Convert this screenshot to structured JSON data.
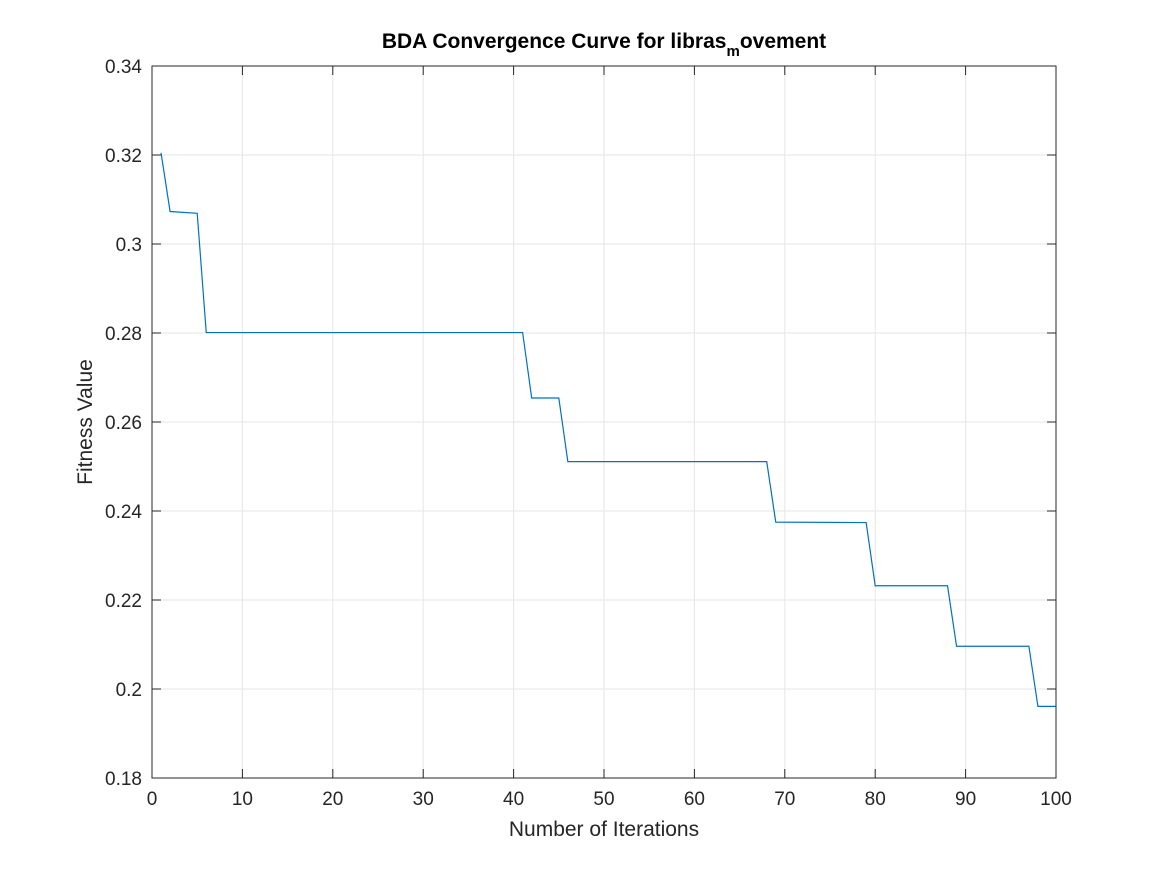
{
  "chart_data": {
    "type": "line",
    "title": {
      "prefix": "BDA Convergence Curve for libras",
      "subscript": "m",
      "suffix": "ovement"
    },
    "xlabel": "Number of Iterations",
    "ylabel": "Fitness Value",
    "xlim": [
      0,
      100
    ],
    "ylim": [
      0.18,
      0.34
    ],
    "xticks": [
      0,
      10,
      20,
      30,
      40,
      50,
      60,
      70,
      80,
      90,
      100
    ],
    "xtick_labels": [
      "0",
      "10",
      "20",
      "30",
      "40",
      "50",
      "60",
      "70",
      "80",
      "90",
      "100"
    ],
    "yticks": [
      0.18,
      0.2,
      0.22,
      0.24,
      0.26,
      0.28,
      0.3,
      0.32,
      0.34
    ],
    "ytick_labels": [
      "0.18",
      "0.2",
      "0.22",
      "0.24",
      "0.26",
      "0.28",
      "0.3",
      "0.32",
      "0.34"
    ],
    "grid": true,
    "box": true,
    "colors": {
      "line": "#0072BD",
      "grid": "#e6e6e6",
      "axes": "#262626"
    },
    "series": [
      {
        "x": [
          1,
          2,
          5,
          6,
          41,
          42,
          45,
          46,
          68,
          69,
          79,
          80,
          88,
          89,
          97,
          98,
          100
        ],
        "values": [
          0.3205,
          0.3073,
          0.3069,
          0.2801,
          0.2801,
          0.2654,
          0.2654,
          0.2511,
          0.2511,
          0.2375,
          0.2374,
          0.2232,
          0.2232,
          0.2096,
          0.2096,
          0.1961,
          0.1961
        ]
      }
    ]
  }
}
